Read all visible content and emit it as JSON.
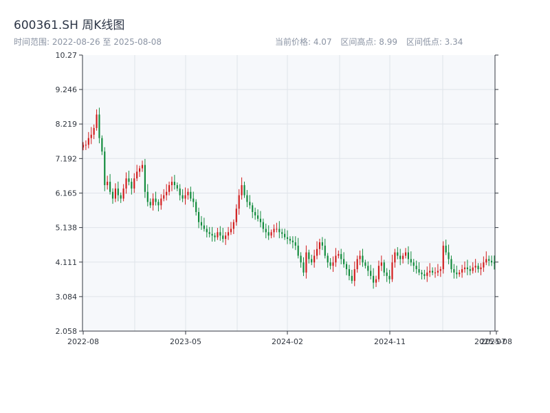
{
  "header": {
    "title": "600361.SH 周K线图",
    "date_range": "时间范围: 2022-08-26 至 2025-08-08",
    "current_price": "当前价格: 4.07",
    "range_high": "区间高点: 8.99",
    "range_low": "区间低点: 3.34"
  },
  "colors": {
    "up": "#d11a1a",
    "down": "#0f8a3a",
    "plot_bg": "#f6f8fb",
    "grid": "#dfe3ea",
    "axis": "#30363f"
  },
  "chart_data": {
    "type": "candlestick",
    "title": "600361.SH 周K线图",
    "frequency": "weekly",
    "ylim": [
      2.058,
      10.27
    ],
    "y_ticks": [
      "10.27",
      "9.246",
      "8.219",
      "7.192",
      "6.165",
      "5.138",
      "4.111",
      "3.084",
      "2.058"
    ],
    "x_ticks": [
      "2022-08",
      "2023-05",
      "2024-02",
      "2024-11",
      "2025-07",
      "2025-08"
    ],
    "start_date": "2022-08-26",
    "end_date": "2025-08-08",
    "current_price": 4.07,
    "range_high": 8.99,
    "range_low": 3.34,
    "weekly_close_approx": [
      7.6,
      7.6,
      7.8,
      7.9,
      8.1,
      8.5,
      7.8,
      7.4,
      6.4,
      6.5,
      6.2,
      6.0,
      6.3,
      6.1,
      6.0,
      6.3,
      6.6,
      6.5,
      6.3,
      6.6,
      6.8,
      6.9,
      7.0,
      6.2,
      5.9,
      5.8,
      6.0,
      5.9,
      5.8,
      6.0,
      6.1,
      6.2,
      6.4,
      6.5,
      6.4,
      6.3,
      6.1,
      6.0,
      6.1,
      6.2,
      6.0,
      5.9,
      5.6,
      5.3,
      5.2,
      5.1,
      5.0,
      4.95,
      4.9,
      4.85,
      5.0,
      4.9,
      4.8,
      4.9,
      5.0,
      5.1,
      5.3,
      5.7,
      6.1,
      6.4,
      6.1,
      5.9,
      5.8,
      5.6,
      5.5,
      5.4,
      5.3,
      5.1,
      5.0,
      4.9,
      5.0,
      5.1,
      5.1,
      5.0,
      4.95,
      4.85,
      4.8,
      4.75,
      4.7,
      4.6,
      4.3,
      4.1,
      3.8,
      4.4,
      4.2,
      4.1,
      4.3,
      4.5,
      4.7,
      4.6,
      4.3,
      4.1,
      4.0,
      4.1,
      4.3,
      4.35,
      4.2,
      4.05,
      3.9,
      3.7,
      3.55,
      3.9,
      4.2,
      4.3,
      4.1,
      4.0,
      3.85,
      3.7,
      3.5,
      3.6,
      4.0,
      4.1,
      3.8,
      3.7,
      3.6,
      4.1,
      4.4,
      4.3,
      4.2,
      4.3,
      4.4,
      4.2,
      4.1,
      4.0,
      3.9,
      3.8,
      3.75,
      3.7,
      3.8,
      3.85,
      3.8,
      3.8,
      3.85,
      3.9,
      4.6,
      4.4,
      4.2,
      3.9,
      3.8,
      3.75,
      3.8,
      3.9,
      3.95,
      3.9,
      3.85,
      3.95,
      4.0,
      3.9,
      3.95,
      4.1,
      4.2,
      4.15,
      4.1,
      4.07
    ]
  }
}
